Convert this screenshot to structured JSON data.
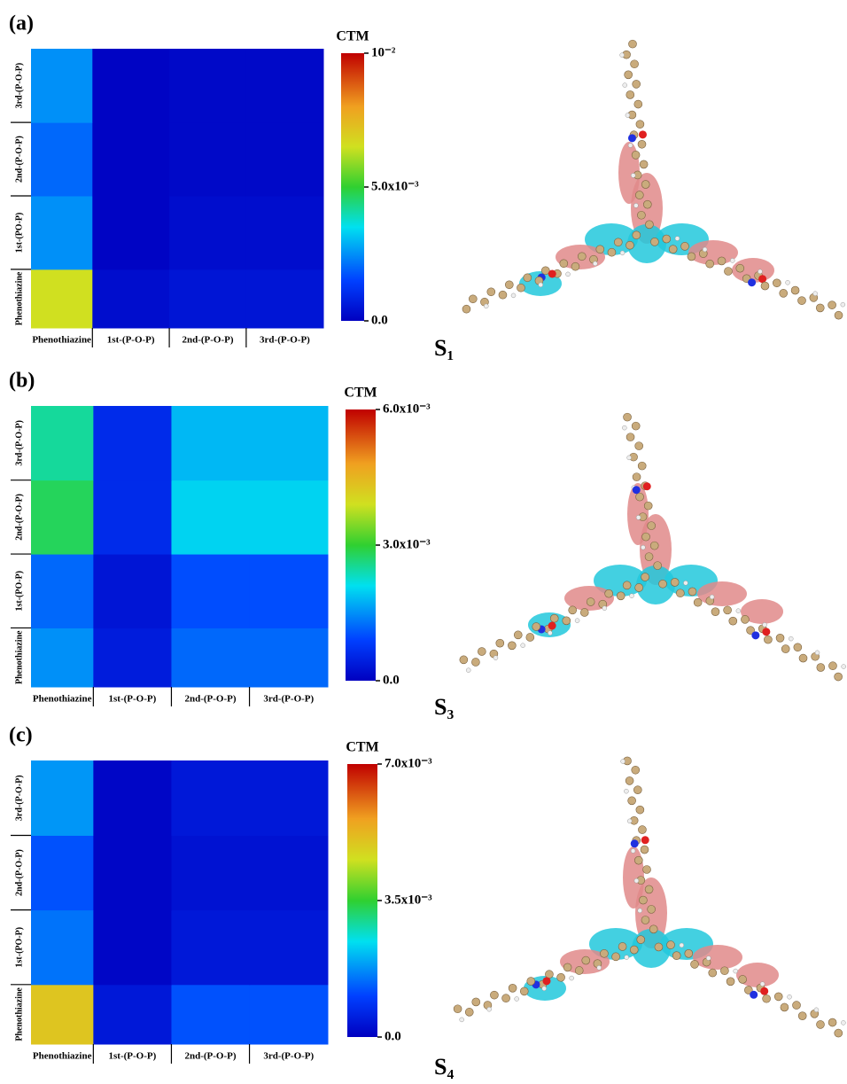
{
  "chart_data": [
    {
      "type": "heatmap",
      "panel_label": "(a)",
      "colorbar_title": "CTM",
      "state_label": "S₁",
      "x": [
        "Phenothiazine",
        "1st-(P-O-P)",
        "2nd-(P-O-P)",
        "3rd-(P-O-P)"
      ],
      "y": [
        "Phenothiazine",
        "1st-(PO-P)",
        "2nd-(P-O-P)",
        "3rd-(P-O-P)"
      ],
      "values": [
        [
          0.0065,
          0.0003,
          0.0005,
          0.0005
        ],
        [
          0.0025,
          0.0001,
          0.0003,
          0.0003
        ],
        [
          0.002,
          0.0001,
          0.0002,
          0.0002
        ],
        [
          0.0025,
          0.0001,
          0.0002,
          0.0002
        ]
      ],
      "zlim": [
        0,
        0.01
      ],
      "zticks": [
        {
          "value": 0,
          "label": "0.0"
        },
        {
          "value": 0.005,
          "label": "5.0x10⁻³"
        },
        {
          "value": 0.01,
          "label": "10⁻²"
        }
      ]
    },
    {
      "type": "heatmap",
      "panel_label": "(b)",
      "colorbar_title": "CTM",
      "state_label": "S₃",
      "x": [
        "Phenothiazine",
        "1st-(P-O-P)",
        "2nd-(P-O-P)",
        "3rd-(P-O-P)"
      ],
      "y": [
        "Phenothiazine",
        "1st-(PO-P)",
        "2nd-(P-O-P)",
        "3rd-(P-O-P)"
      ],
      "values": [
        [
          0.0015,
          0.0004,
          0.0012,
          0.0012
        ],
        [
          0.0012,
          0.0003,
          0.001,
          0.001
        ],
        [
          0.0028,
          0.0006,
          0.002,
          0.002
        ],
        [
          0.0025,
          0.0006,
          0.0018,
          0.0018
        ]
      ],
      "zlim": [
        0,
        0.006
      ],
      "zticks": [
        {
          "value": 0,
          "label": "0.0"
        },
        {
          "value": 0.003,
          "label": "3.0x10⁻³"
        },
        {
          "value": 0.006,
          "label": "6.0x10⁻³"
        }
      ]
    },
    {
      "type": "heatmap",
      "panel_label": "(c)",
      "colorbar_title": "CTM",
      "state_label": "S₄",
      "x": [
        "Phenothiazine",
        "1st-(P-O-P)",
        "2nd-(P-O-P)",
        "3rd-(P-O-P)"
      ],
      "y": [
        "Phenothiazine",
        "1st-(PO-P)",
        "2nd-(P-O-P)",
        "3rd-(P-O-P)"
      ],
      "values": [
        [
          0.005,
          0.0004,
          0.0012,
          0.0012
        ],
        [
          0.0015,
          0.0001,
          0.0004,
          0.0004
        ],
        [
          0.0012,
          0.0001,
          0.0003,
          0.0003
        ],
        [
          0.0018,
          0.0001,
          0.0004,
          0.0004
        ]
      ],
      "zlim": [
        0,
        0.007
      ],
      "zticks": [
        {
          "value": 0,
          "label": "0.0"
        },
        {
          "value": 0.0035,
          "label": "3.5x10⁻³"
        },
        {
          "value": 0.007,
          "label": "7.0x10⁻³"
        }
      ]
    }
  ]
}
